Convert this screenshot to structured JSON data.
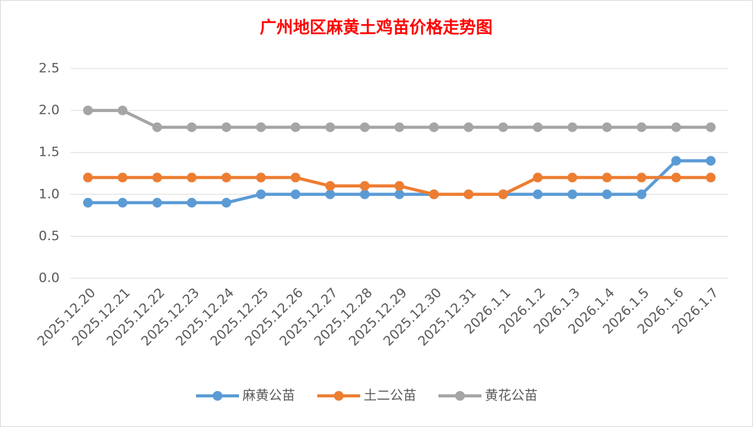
{
  "chart_data": {
    "type": "line",
    "title": "广州地区麻黄土鸡苗价格走势图",
    "categories": [
      "2025.12.20",
      "2025.12.21",
      "2025.12.22",
      "2025.12.23",
      "2025.12.24",
      "2025.12.25",
      "2025.12.26",
      "2025.12.27",
      "2025.12.28",
      "2025.12.29",
      "2025.12.30",
      "2025.12.31",
      "2026.1.1",
      "2026.1.2",
      "2026.1.3",
      "2026.1.4",
      "2026.1.5",
      "2026.1.6",
      "2026.1.7"
    ],
    "series": [
      {
        "name": "麻黄公苗",
        "color": "#5b9bd5",
        "values": [
          0.9,
          0.9,
          0.9,
          0.9,
          0.9,
          1.0,
          1.0,
          1.0,
          1.0,
          1.0,
          1.0,
          1.0,
          1.0,
          1.0,
          1.0,
          1.0,
          1.0,
          1.4,
          1.4
        ]
      },
      {
        "name": "土二公苗",
        "color": "#ed7d31",
        "values": [
          1.2,
          1.2,
          1.2,
          1.2,
          1.2,
          1.2,
          1.2,
          1.1,
          1.1,
          1.1,
          1.0,
          1.0,
          1.0,
          1.2,
          1.2,
          1.2,
          1.2,
          1.2,
          1.2
        ]
      },
      {
        "name": "黄花公苗",
        "color": "#a5a5a5",
        "values": [
          2.0,
          2.0,
          1.8,
          1.8,
          1.8,
          1.8,
          1.8,
          1.8,
          1.8,
          1.8,
          1.8,
          1.8,
          1.8,
          1.8,
          1.8,
          1.8,
          1.8,
          1.8,
          1.8
        ]
      }
    ],
    "ylim": [
      0,
      2.5
    ],
    "yticks": [
      {
        "value": 0,
        "label": "0.0"
      },
      0.5,
      {
        "value": 1,
        "label": "1.0"
      },
      1.5,
      {
        "value": 2,
        "label": "2.0"
      },
      2.5
    ],
    "grid": true,
    "legend": "bottom"
  }
}
